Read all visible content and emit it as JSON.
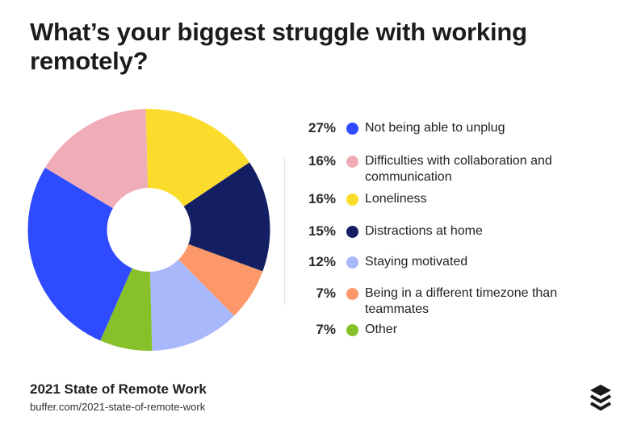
{
  "title": "What’s your biggest struggle with working remotely?",
  "chart_data": {
    "type": "pie",
    "donut": true,
    "unit": "%",
    "categories": [
      "Not being able to unplug",
      "Difficulties with collaboration and communication",
      "Loneliness",
      "Distractions at home",
      "Staying motivated",
      "Being in a different timezone than teammates",
      "Other"
    ],
    "values": [
      27,
      16,
      16,
      15,
      12,
      7,
      7
    ],
    "labels": [
      "27%",
      "16%",
      "16%",
      "15%",
      "12%",
      "7%",
      "7%"
    ],
    "colors": [
      "#2f4bff",
      "#f0adb8",
      "#fbdc2c",
      "#141f63",
      "#a9b8fa",
      "#fc9869",
      "#86c12a"
    ],
    "legend": "right",
    "slice_order_clockwise_from_top": [
      2,
      3,
      5,
      4,
      6,
      0,
      1
    ]
  },
  "footer": {
    "title": "2021 State of Remote Work",
    "url": "buffer.com/2021-state-of-remote-work",
    "logo": "buffer-stack-logo-icon"
  }
}
